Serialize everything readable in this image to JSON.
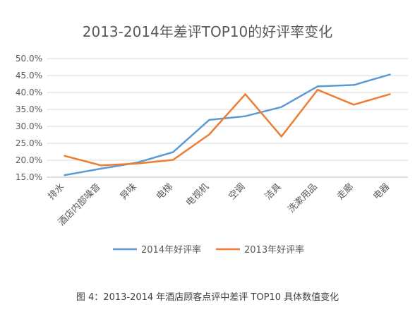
{
  "chart_data": {
    "type": "line",
    "title": "2013-2014年差评TOP10的好评率变化",
    "categories": [
      "排水",
      "酒店内部噪音",
      "异味",
      "电梯",
      "电视机",
      "空调",
      "洁具",
      "洗漱用品",
      "走廊",
      "电器"
    ],
    "series": [
      {
        "name": "2014年好评率",
        "color": "#5b9bd5",
        "values": [
          15.6,
          17.5,
          19.3,
          22.4,
          31.9,
          33.0,
          35.7,
          41.8,
          42.2,
          45.3
        ]
      },
      {
        "name": "2013年好评率",
        "color": "#ed7d31",
        "values": [
          21.3,
          18.5,
          19.0,
          20.1,
          27.6,
          39.5,
          27.0,
          40.8,
          36.4,
          39.5
        ]
      }
    ],
    "ylim": [
      15,
      50
    ],
    "yticks": [
      "15.0%",
      "20.0%",
      "25.0%",
      "30.0%",
      "35.0%",
      "40.0%",
      "45.0%",
      "50.0%"
    ],
    "xlabel": "",
    "ylabel": "",
    "grid": true,
    "legend": "bottom"
  },
  "caption": "图 4：2013-2014 年酒店顾客点评中差评 TOP10 具体数值变化"
}
